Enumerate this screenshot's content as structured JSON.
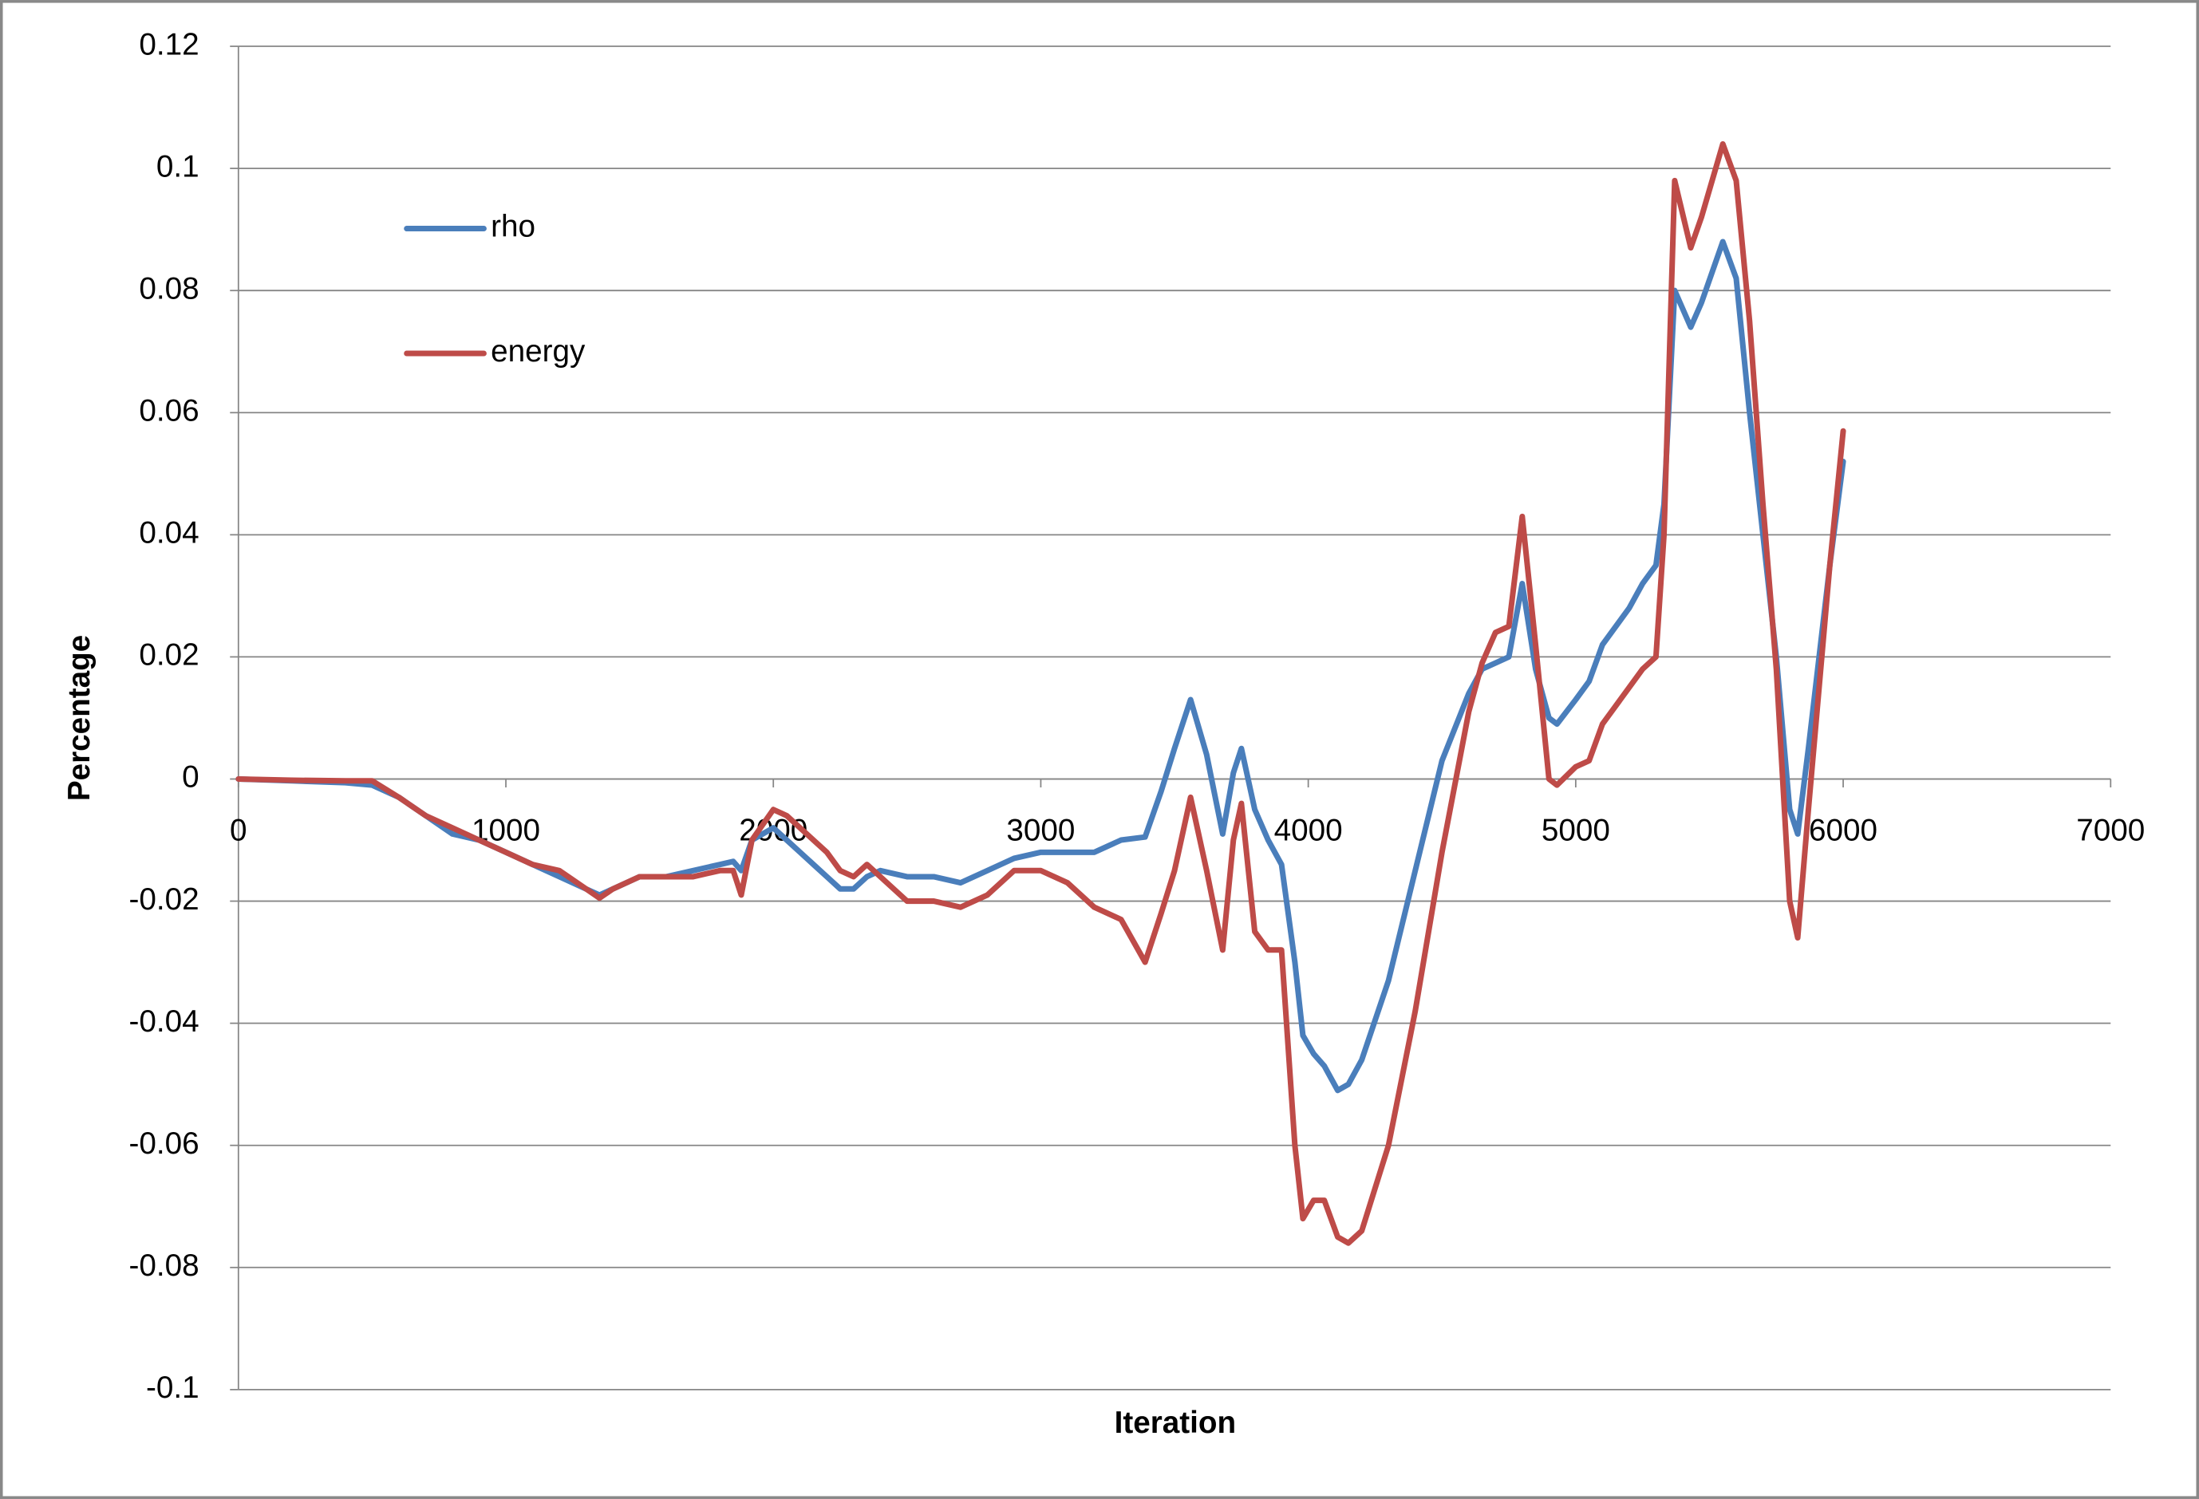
{
  "chart_data": {
    "type": "line",
    "xlabel": "Iteration",
    "ylabel": "Percentage",
    "x": [
      0,
      200,
      400,
      500,
      600,
      700,
      800,
      900,
      1000,
      1100,
      1200,
      1300,
      1350,
      1400,
      1500,
      1600,
      1700,
      1800,
      1850,
      1880,
      1920,
      2000,
      2050,
      2100,
      2200,
      2250,
      2300,
      2350,
      2400,
      2500,
      2600,
      2700,
      2800,
      2900,
      3000,
      3100,
      3200,
      3300,
      3390,
      3450,
      3500,
      3560,
      3620,
      3680,
      3720,
      3750,
      3800,
      3850,
      3900,
      3950,
      3980,
      4020,
      4060,
      4110,
      4150,
      4200,
      4300,
      4400,
      4500,
      4600,
      4650,
      4700,
      4750,
      4800,
      4850,
      4900,
      4930,
      5000,
      5050,
      5100,
      5200,
      5250,
      5300,
      5330,
      5370,
      5430,
      5470,
      5550,
      5600,
      5650,
      5700,
      5750,
      5800,
      5830,
      5870,
      5950,
      6000
    ],
    "series": [
      {
        "name": "rho",
        "color": "#4a7ebb",
        "values": [
          0,
          -0.0003,
          -0.0006,
          -0.001,
          -0.003,
          -0.006,
          -0.009,
          -0.01,
          -0.012,
          -0.014,
          -0.016,
          -0.018,
          -0.019,
          -0.018,
          -0.016,
          -0.016,
          -0.015,
          -0.014,
          -0.0135,
          -0.015,
          -0.01,
          -0.008,
          -0.01,
          -0.012,
          -0.016,
          -0.018,
          -0.018,
          -0.016,
          -0.015,
          -0.016,
          -0.016,
          -0.017,
          -0.015,
          -0.013,
          -0.012,
          -0.012,
          -0.012,
          -0.01,
          -0.0095,
          -0.002,
          0.005,
          0.013,
          0.004,
          -0.009,
          0.001,
          0.005,
          -0.005,
          -0.01,
          -0.014,
          -0.03,
          -0.042,
          -0.045,
          -0.047,
          -0.051,
          -0.05,
          -0.046,
          -0.033,
          -0.015,
          0.003,
          0.014,
          0.018,
          0.019,
          0.02,
          0.032,
          0.018,
          0.01,
          0.009,
          0.013,
          0.016,
          0.022,
          0.028,
          0.032,
          0.035,
          0.045,
          0.08,
          0.074,
          0.078,
          0.088,
          0.082,
          0.06,
          0.04,
          0.02,
          -0.005,
          -0.009,
          0.005,
          0.035,
          0.052
        ]
      },
      {
        "name": "energy",
        "color": "#be4b48",
        "values": [
          0,
          -0.0002,
          -0.0003,
          -0.0003,
          -0.003,
          -0.006,
          -0.008,
          -0.01,
          -0.012,
          -0.014,
          -0.015,
          -0.018,
          -0.0195,
          -0.018,
          -0.016,
          -0.016,
          -0.016,
          -0.015,
          -0.015,
          -0.019,
          -0.01,
          -0.005,
          -0.006,
          -0.008,
          -0.012,
          -0.015,
          -0.016,
          -0.014,
          -0.016,
          -0.02,
          -0.02,
          -0.021,
          -0.019,
          -0.015,
          -0.015,
          -0.017,
          -0.021,
          -0.023,
          -0.03,
          -0.022,
          -0.015,
          -0.003,
          -0.015,
          -0.028,
          -0.01,
          -0.004,
          -0.025,
          -0.028,
          -0.028,
          -0.06,
          -0.072,
          -0.069,
          -0.069,
          -0.075,
          -0.076,
          -0.074,
          -0.06,
          -0.038,
          -0.012,
          0.011,
          0.019,
          0.024,
          0.025,
          0.043,
          0.022,
          0,
          -0.001,
          0.002,
          0.003,
          0.009,
          0.015,
          0.018,
          0.02,
          0.04,
          0.098,
          0.087,
          0.092,
          0.104,
          0.098,
          0.075,
          0.045,
          0.018,
          -0.02,
          -0.026,
          -0.005,
          0.035,
          0.057
        ]
      }
    ],
    "xlim": [
      0,
      7000
    ],
    "xticks": [
      0,
      1000,
      2000,
      3000,
      4000,
      5000,
      6000,
      7000
    ],
    "ylim": [
      -0.1,
      0.12
    ],
    "yticks": [
      0.12,
      0.1,
      0.08,
      0.06,
      0.04,
      0.02,
      0,
      -0.02,
      -0.04,
      -0.06,
      -0.08,
      -0.1
    ],
    "grid": true,
    "legend": "upper-left"
  }
}
